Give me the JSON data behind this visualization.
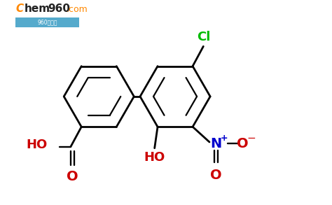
{
  "bg_color": "#ffffff",
  "bond_color": "#000000",
  "bond_lw": 2.0,
  "inner_lw": 1.6,
  "cl_color": "#00bb00",
  "ho_color": "#cc0000",
  "no2_N_color": "#0000cc",
  "no2_O_color": "#cc0000",
  "cooh_color": "#cc0000",
  "fig_width": 4.74,
  "fig_height": 2.93,
  "dpi": 100,
  "xlim": [
    0,
    10
  ],
  "ylim": [
    -0.5,
    6.0
  ]
}
